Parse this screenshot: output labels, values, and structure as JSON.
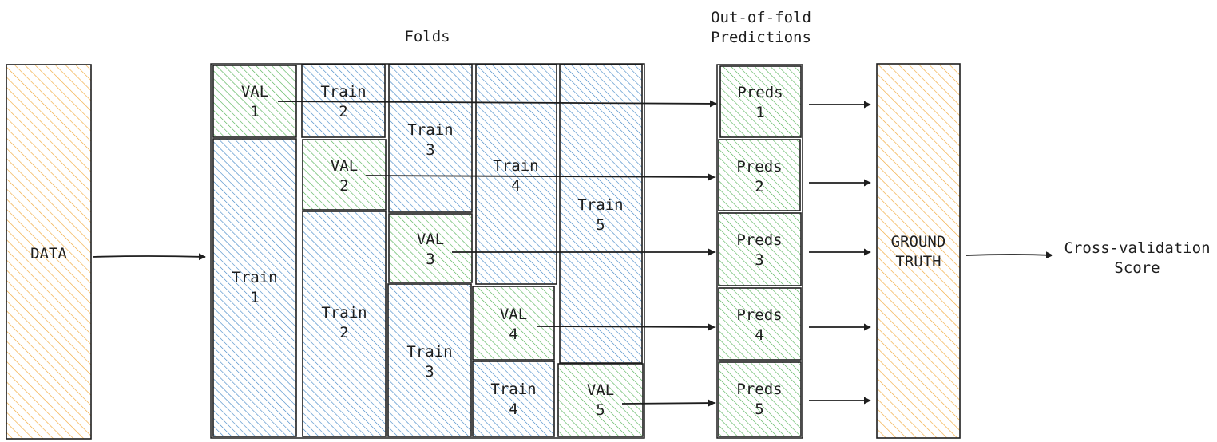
{
  "colors": {
    "orange": "#f2a93b",
    "blue": "#3b82c4",
    "green": "#4caf50",
    "stroke": "#1e1e1e"
  },
  "headings": {
    "folds": "Folds",
    "oof_line1": "Out-of-fold",
    "oof_line2": "Predictions"
  },
  "data_block": {
    "label": "DATA"
  },
  "ground_truth": {
    "line1": "GROUND",
    "line2": "TRUTH"
  },
  "score": {
    "line1": "Cross-validation",
    "line2": "Score"
  },
  "fold_blocks": [
    {
      "kind": "val",
      "line1": "VAL",
      "line2": "1"
    },
    {
      "kind": "train",
      "line1": "Train",
      "line2": "1"
    },
    {
      "kind": "train",
      "line1": "Train",
      "line2": "2"
    },
    {
      "kind": "val",
      "line1": "VAL",
      "line2": "2"
    },
    {
      "kind": "train",
      "line1": "Train",
      "line2": "2"
    },
    {
      "kind": "train",
      "line1": "Train",
      "line2": "3"
    },
    {
      "kind": "val",
      "line1": "VAL",
      "line2": "3"
    },
    {
      "kind": "train",
      "line1": "Train",
      "line2": "3"
    },
    {
      "kind": "train",
      "line1": "Train",
      "line2": "4"
    },
    {
      "kind": "val",
      "line1": "VAL",
      "line2": "4"
    },
    {
      "kind": "train",
      "line1": "Train",
      "line2": "4"
    },
    {
      "kind": "train",
      "line1": "Train",
      "line2": "5"
    },
    {
      "kind": "val",
      "line1": "VAL",
      "line2": "5"
    }
  ],
  "preds": [
    {
      "line1": "Preds",
      "line2": "1"
    },
    {
      "line1": "Preds",
      "line2": "2"
    },
    {
      "line1": "Preds",
      "line2": "3"
    },
    {
      "line1": "Preds",
      "line2": "4"
    },
    {
      "line1": "Preds",
      "line2": "5"
    }
  ]
}
